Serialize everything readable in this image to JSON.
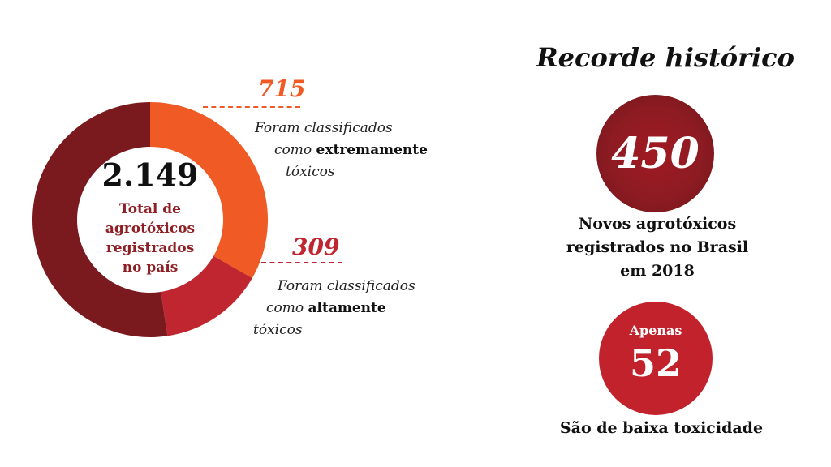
{
  "chart_data": {
    "type": "pie",
    "total": "2.149",
    "total_caption_lines": [
      "Total de",
      "agrotóxicos",
      "registrados",
      "no país"
    ],
    "slices": [
      {
        "value": 715,
        "label": "715",
        "color": "#f05a24",
        "text_lines": [
          "Foram classificados",
          "como",
          "tóxicos"
        ],
        "bold_word": "extremamente"
      },
      {
        "value": 309,
        "label": "309",
        "color": "#c0262f",
        "text_lines": [
          "Foram classificados",
          "como",
          "tóxicos"
        ],
        "bold_word": "altamente"
      },
      {
        "value": 1125,
        "color": "#7a1a1f"
      }
    ]
  },
  "right_panel": {
    "title": "Recorde histórico",
    "record": {
      "value": "450",
      "circle_color": "#8d1b22",
      "caption_lines": [
        "Novos agrotóxicos",
        "registrados no Brasil",
        "em 2018"
      ]
    },
    "low_toxicity": {
      "prefix": "Apenas",
      "value": "52",
      "circle_color": "#c2222c",
      "caption": "São de baixa toxicidade"
    }
  }
}
